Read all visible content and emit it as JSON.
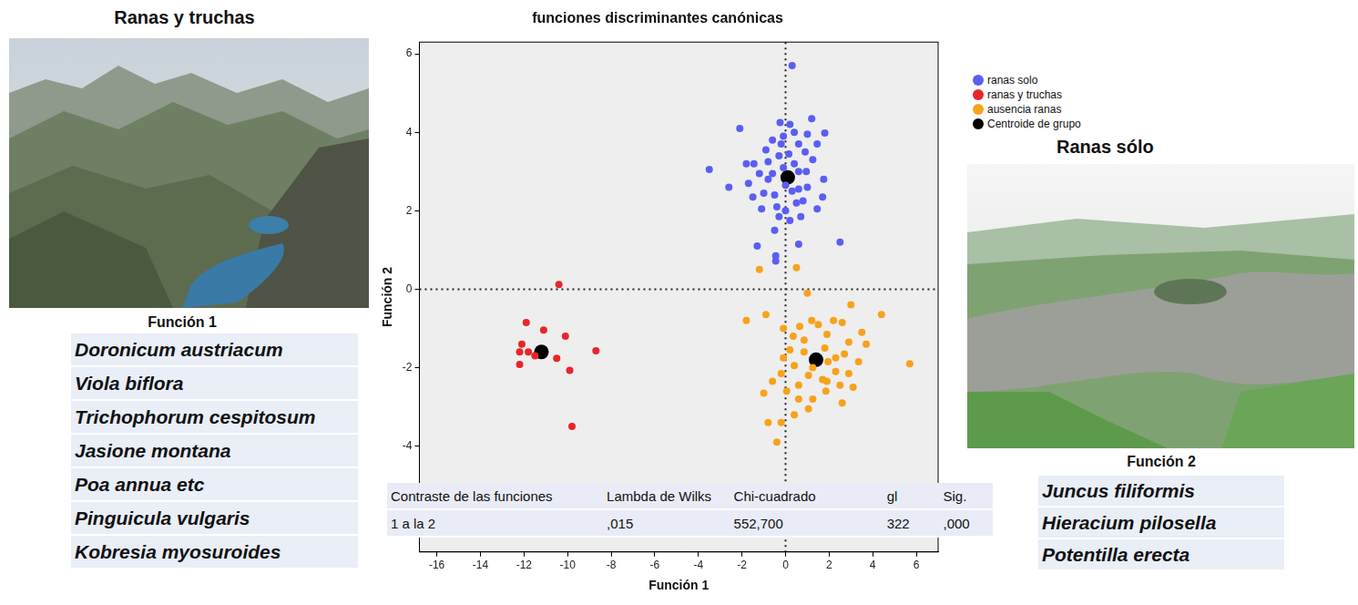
{
  "chart_data": {
    "type": "scatter",
    "title": "funciones discriminantes canónicas",
    "x_label": "Función 1",
    "y_label": "Función 2",
    "xlim": [
      -16.8,
      7
    ],
    "ylim": [
      -6.7,
      6.3
    ],
    "xticks": [
      -16,
      -14,
      -12,
      -10,
      -8,
      -6,
      -4,
      -2,
      0,
      2,
      4,
      6
    ],
    "yticks": [
      -4,
      -2,
      0,
      2,
      4,
      6
    ],
    "grid": false,
    "legend": "right",
    "reference_lines": {
      "x": 0,
      "y": 0
    },
    "series": [
      {
        "name": "ranas solo",
        "color": "#5b5ef2",
        "marker": "circle",
        "values": [
          [
            0.3,
            5.7
          ],
          [
            1.2,
            4.35
          ],
          [
            -0.25,
            4.25
          ],
          [
            1.8,
            3.98
          ],
          [
            -2.1,
            4.1
          ],
          [
            0.4,
            4.0
          ],
          [
            -3.5,
            3.05
          ],
          [
            -2.6,
            2.6
          ],
          [
            -1.7,
            2.7
          ],
          [
            -1.45,
            3.2
          ],
          [
            -0.9,
            3.55
          ],
          [
            -0.6,
            3.8
          ],
          [
            0.6,
            3.7
          ],
          [
            1.25,
            3.3
          ],
          [
            1.75,
            2.8
          ],
          [
            1.7,
            2.35
          ],
          [
            2.5,
            1.2
          ],
          [
            0.6,
            1.15
          ],
          [
            -0.4,
            2.1
          ],
          [
            -0.5,
            1.5
          ],
          [
            -1.3,
            1.1
          ],
          [
            -0.45,
            0.85
          ],
          [
            -0.45,
            0.72
          ],
          [
            0.0,
            2.0
          ],
          [
            0.0,
            2.65
          ],
          [
            -1.0,
            2.45
          ],
          [
            -1.5,
            2.35
          ],
          [
            -1.1,
            2.05
          ],
          [
            0.95,
            3.0
          ],
          [
            0.15,
            3.45
          ],
          [
            0.4,
            3.2
          ],
          [
            -0.3,
            3.4
          ],
          [
            -0.1,
            3.1
          ],
          [
            0.6,
            2.55
          ],
          [
            0.8,
            2.25
          ],
          [
            0.3,
            2.5
          ],
          [
            -0.6,
            2.95
          ],
          [
            -0.8,
            2.8
          ],
          [
            -1.2,
            2.95
          ],
          [
            1.45,
            3.7
          ],
          [
            1.0,
            3.95
          ],
          [
            -0.1,
            3.9
          ],
          [
            -0.8,
            3.25
          ],
          [
            0.6,
            3.0
          ],
          [
            -0.3,
            1.85
          ],
          [
            0.5,
            2.2
          ],
          [
            1.0,
            2.6
          ],
          [
            1.45,
            2.05
          ],
          [
            0.2,
            1.75
          ],
          [
            0.7,
            1.85
          ],
          [
            -0.2,
            3.7
          ],
          [
            0.9,
            3.5
          ],
          [
            -1.8,
            3.2
          ],
          [
            0.2,
            4.2
          ],
          [
            -0.5,
            2.4
          ]
        ]
      },
      {
        "name": "ranas y truchas",
        "color": "#e8262a",
        "marker": "circle",
        "values": [
          [
            -10.4,
            0.12
          ],
          [
            -11.9,
            -0.85
          ],
          [
            -11.1,
            -1.04
          ],
          [
            -12.1,
            -1.4
          ],
          [
            -12.2,
            -1.6
          ],
          [
            -12.2,
            -1.92
          ],
          [
            -11.5,
            -1.7
          ],
          [
            -10.5,
            -1.76
          ],
          [
            -10.1,
            -1.2
          ],
          [
            -8.7,
            -1.57
          ],
          [
            -9.9,
            -2.07
          ],
          [
            -9.8,
            -3.5
          ],
          [
            -11.8,
            -1.6
          ]
        ]
      },
      {
        "name": "ausencia ranas",
        "color": "#f7a21b",
        "marker": "circle",
        "values": [
          [
            -1.2,
            0.5
          ],
          [
            0.5,
            0.55
          ],
          [
            1.0,
            -0.1
          ],
          [
            3.0,
            -0.4
          ],
          [
            4.4,
            -0.65
          ],
          [
            5.7,
            -1.9
          ],
          [
            -1.8,
            -0.8
          ],
          [
            -0.9,
            -0.65
          ],
          [
            1.2,
            -0.8
          ],
          [
            2.2,
            -0.8
          ],
          [
            2.6,
            -0.85
          ],
          [
            3.5,
            -1.1
          ],
          [
            -0.1,
            -1.0
          ],
          [
            0.35,
            -1.2
          ],
          [
            0.85,
            -1.3
          ],
          [
            1.9,
            -1.15
          ],
          [
            2.9,
            -1.35
          ],
          [
            3.7,
            -1.4
          ],
          [
            2.7,
            -1.65
          ],
          [
            3.35,
            -1.85
          ],
          [
            2.3,
            -2.1
          ],
          [
            1.7,
            -2.3
          ],
          [
            1.05,
            -2.2
          ],
          [
            0.4,
            -1.95
          ],
          [
            -0.2,
            -2.15
          ],
          [
            -0.6,
            -2.35
          ],
          [
            -1.0,
            -2.65
          ],
          [
            0.05,
            -2.6
          ],
          [
            0.6,
            -2.8
          ],
          [
            1.25,
            -2.8
          ],
          [
            1.85,
            -2.6
          ],
          [
            2.5,
            -2.45
          ],
          [
            3.1,
            -2.5
          ],
          [
            2.6,
            -2.9
          ],
          [
            0.4,
            -3.2
          ],
          [
            -0.2,
            -3.4
          ],
          [
            -0.8,
            -3.4
          ],
          [
            -0.4,
            -3.9
          ],
          [
            -0.1,
            -1.75
          ],
          [
            0.85,
            -1.6
          ],
          [
            1.8,
            -1.5
          ],
          [
            2.3,
            -1.75
          ],
          [
            0.2,
            -1.55
          ],
          [
            1.25,
            -2.0
          ],
          [
            1.95,
            -1.85
          ],
          [
            1.05,
            -3.05
          ],
          [
            1.9,
            -2.35
          ],
          [
            0.6,
            -2.45
          ],
          [
            2.9,
            -2.15
          ],
          [
            1.5,
            -0.9
          ],
          [
            0.65,
            -0.95
          ]
        ]
      },
      {
        "name": "Centroide de grupo",
        "color": "#000000",
        "marker": "big circle",
        "values": [
          [
            0.1,
            2.85
          ],
          [
            -11.2,
            -1.6
          ],
          [
            1.4,
            -1.8
          ]
        ]
      }
    ],
    "table": {
      "columns": [
        "Contraste de las funciones",
        "Lambda de Wilks",
        "Chi-cuadrado",
        "gl",
        "Sig."
      ],
      "rows": [
        [
          "1 a la 2",
          ",015",
          "552,700",
          "322",
          ",000"
        ]
      ]
    }
  },
  "left_panel": {
    "title": "Ranas y truchas",
    "list_title": "Función 1",
    "species": [
      "Doronicum austriacum",
      "Viola biflora",
      "Trichophorum cespitosum",
      "Jasione montana",
      "Poa annua etc",
      "Pinguicula vulgaris",
      "Kobresia myosuroides"
    ]
  },
  "right_panel": {
    "title": "Ranas sólo",
    "list_title": "Función 2",
    "species": [
      "Juncus filiformis",
      "Hieracium pilosella",
      "Potentilla erecta"
    ]
  }
}
